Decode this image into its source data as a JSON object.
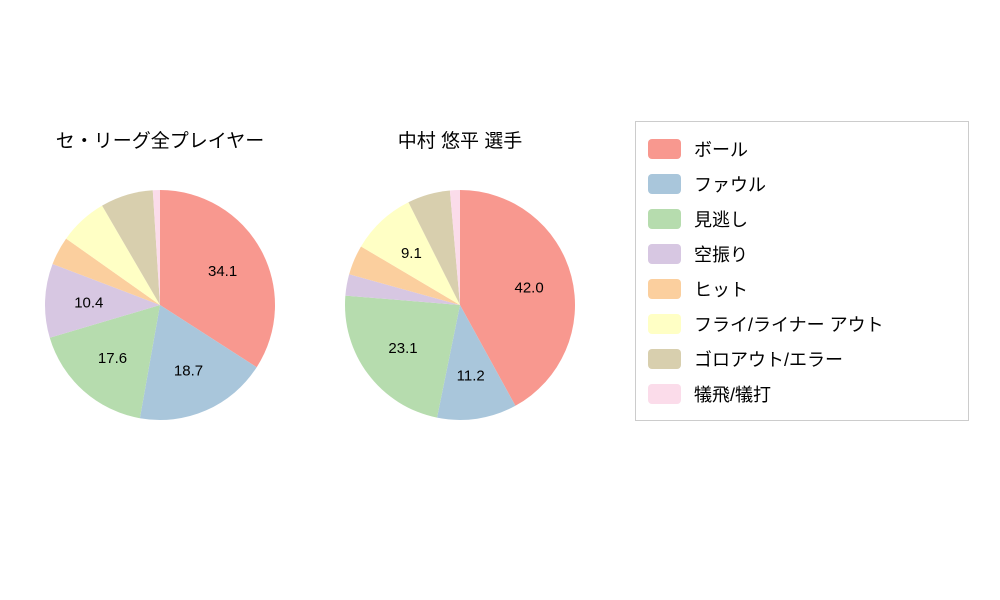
{
  "figure": {
    "background": "#ffffff"
  },
  "chart_data": [
    {
      "type": "pie",
      "title": "セ・リーグ全プレイヤー",
      "categories": [
        "ボール",
        "ファウル",
        "見逃し",
        "空振り",
        "ヒット",
        "フライ/ライナー アウト",
        "ゴロアウト/エラー",
        "犠飛/犠打"
      ],
      "values": [
        34.1,
        18.7,
        17.6,
        10.4,
        4.0,
        6.8,
        7.4,
        1.0
      ],
      "shown_value_labels": [
        "34.1",
        "18.7",
        "17.6",
        "10.4"
      ],
      "label_min_value": 9.0,
      "start_angle": "top",
      "direction": "clockwise",
      "legend_position": "right"
    },
    {
      "type": "pie",
      "title": "中村 悠平  選手",
      "categories": [
        "ボール",
        "ファウル",
        "見逃し",
        "空振り",
        "ヒット",
        "フライ/ライナー アウト",
        "ゴロアウト/エラー",
        "犠飛/犠打"
      ],
      "values": [
        42.0,
        11.2,
        23.1,
        3.0,
        4.2,
        9.1,
        6.0,
        1.4
      ],
      "shown_value_labels": [
        "42.0",
        "11.2",
        "23.1",
        "9.1"
      ],
      "label_min_value": 9.0,
      "start_angle": "top",
      "direction": "clockwise",
      "legend_position": "right"
    }
  ],
  "legend": {
    "items": [
      {
        "label": "ボール",
        "color": "#f8988f"
      },
      {
        "label": "ファウル",
        "color": "#a9c6db"
      },
      {
        "label": "見逃し",
        "color": "#b6dcae"
      },
      {
        "label": "空振り",
        "color": "#d7c7e2"
      },
      {
        "label": "ヒット",
        "color": "#fbcf9e"
      },
      {
        "label": "フライ/ライナー アウト",
        "color": "#ffffc5"
      },
      {
        "label": "ゴロアウト/エラー",
        "color": "#d8cfae"
      },
      {
        "label": "犠飛/犠打",
        "color": "#fbdcea"
      }
    ]
  }
}
